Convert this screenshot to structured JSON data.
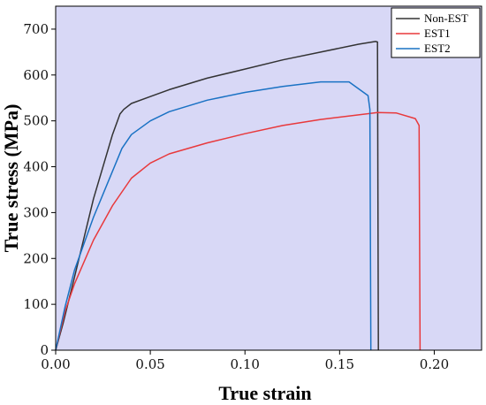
{
  "chart_data": {
    "type": "line",
    "title": "",
    "xlabel": "True strain",
    "ylabel": "True stress (MPa)",
    "xlim": [
      0,
      0.225
    ],
    "ylim": [
      0,
      750
    ],
    "x_ticks": [
      "0.00",
      "0.05",
      "0.10",
      "0.15",
      "0.20"
    ],
    "x_tick_values": [
      0,
      0.05,
      0.1,
      0.15,
      0.2
    ],
    "y_ticks": [
      "0",
      "100",
      "200",
      "300",
      "400",
      "500",
      "600",
      "700"
    ],
    "y_tick_values": [
      0,
      100,
      200,
      300,
      400,
      500,
      600,
      700
    ],
    "grid": false,
    "background": "#d8d8f6",
    "legend_position": "top-right",
    "series": [
      {
        "name": "Non-EST",
        "color": "#333333",
        "x": [
          0,
          0.004,
          0.01,
          0.02,
          0.03,
          0.034,
          0.036,
          0.04,
          0.05,
          0.06,
          0.08,
          0.1,
          0.12,
          0.14,
          0.16,
          0.169,
          0.17,
          0.1705
        ],
        "y": [
          0,
          60,
          160,
          330,
          470,
          515,
          525,
          538,
          553,
          568,
          593,
          613,
          633,
          650,
          667,
          673,
          672,
          0
        ]
      },
      {
        "name": "EST1",
        "color": "#e8393c",
        "x": [
          0,
          0.005,
          0.01,
          0.02,
          0.03,
          0.04,
          0.05,
          0.06,
          0.08,
          0.1,
          0.12,
          0.14,
          0.16,
          0.17,
          0.18,
          0.19,
          0.192,
          0.1925
        ],
        "y": [
          0,
          85,
          145,
          240,
          315,
          375,
          408,
          428,
          452,
          472,
          490,
          503,
          513,
          518,
          517,
          505,
          490,
          0
        ]
      },
      {
        "name": "EST2",
        "color": "#1a72c4",
        "x": [
          0,
          0.005,
          0.01,
          0.02,
          0.03,
          0.035,
          0.04,
          0.05,
          0.06,
          0.08,
          0.1,
          0.12,
          0.14,
          0.155,
          0.165,
          0.166,
          0.1665
        ],
        "y": [
          0,
          95,
          175,
          290,
          390,
          440,
          470,
          500,
          520,
          545,
          562,
          575,
          585,
          585,
          555,
          525,
          0
        ]
      }
    ]
  }
}
